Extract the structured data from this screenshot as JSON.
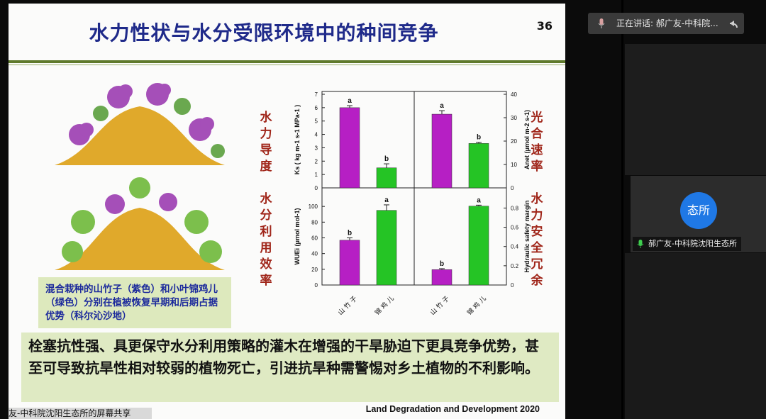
{
  "slide": {
    "title": "水力性状与水分受限环境中的种间竞争",
    "page_number": "36",
    "caption": "混合栽种的山竹子（紫色）和小叶锦鸡儿（绿色）分别在植被恢复早期和后期占据优势（科尔沁沙地）",
    "summary": "栓塞抗性强、具更保守水分利用策略的灌木在增强的干旱胁迫下更具竞争优势，甚至可导致抗旱性相对较弱的植物死亡，引进抗旱种需警惕对乡土植物的不利影响。",
    "citation": "Land Degradation and Development 2020",
    "labels": {
      "hydraulic_conductance": "水力导度",
      "photosynthetic_rate": "光合速率",
      "water_use_efficiency": "水分利用效率",
      "hydraulic_safety": "水力安全冗余"
    }
  },
  "chart_data": [
    {
      "type": "bar",
      "categories": [
        "山竹子",
        "锦鸡儿"
      ],
      "values": [
        6.0,
        1.5
      ],
      "errors": [
        0.15,
        0.3
      ],
      "letters": [
        "a",
        "b"
      ],
      "colors": [
        "#b61fc4",
        "#25c425"
      ],
      "ylabel": "Ks ( kg m-1 s-1 MPa-1 )",
      "ylim": [
        0,
        7
      ],
      "yticks": [
        0,
        1,
        2,
        3,
        4,
        5,
        6,
        7
      ]
    },
    {
      "type": "bar",
      "categories": [
        "山竹子",
        "锦鸡儿"
      ],
      "values": [
        31.5,
        19
      ],
      "errors": [
        1.5,
        0.5
      ],
      "letters": [
        "a",
        "b"
      ],
      "colors": [
        "#b61fc4",
        "#25c425"
      ],
      "ylabel": "Anet (μmol m-2 s-1)",
      "ylim": [
        0,
        40
      ],
      "yticks": [
        0,
        10,
        20,
        30,
        40
      ]
    },
    {
      "type": "bar",
      "categories": [
        "山竹子",
        "锦鸡儿"
      ],
      "values": [
        57,
        95
      ],
      "errors": [
        3,
        7
      ],
      "letters": [
        "b",
        "a"
      ],
      "colors": [
        "#b61fc4",
        "#25c425"
      ],
      "ylabel": "WUEi (μmol mol-1)",
      "ylim": [
        0,
        120
      ],
      "yticks": [
        0,
        20,
        40,
        60,
        80,
        100
      ]
    },
    {
      "type": "bar",
      "categories": [
        "山竹子",
        "锦鸡儿"
      ],
      "values": [
        0.16,
        0.82
      ],
      "errors": [
        0.01,
        0.01
      ],
      "letters": [
        "b",
        "a"
      ],
      "colors": [
        "#b61fc4",
        "#25c425"
      ],
      "ylabel": "Hydraulic safety margin",
      "ylim": [
        0,
        0.98
      ],
      "yticks": [
        0.0,
        0.2,
        0.4,
        0.6,
        0.8
      ]
    }
  ],
  "meeting": {
    "speaking_prefix": "正在讲话:",
    "speaking_name": "郝广友-中科院...",
    "tile_avatar_text": "态所",
    "tile_name": "郝广友-中科院沈阳生态所",
    "share_label": "友-中科院沈阳生态所的屏幕共享",
    "accent": "#1f78e5"
  }
}
